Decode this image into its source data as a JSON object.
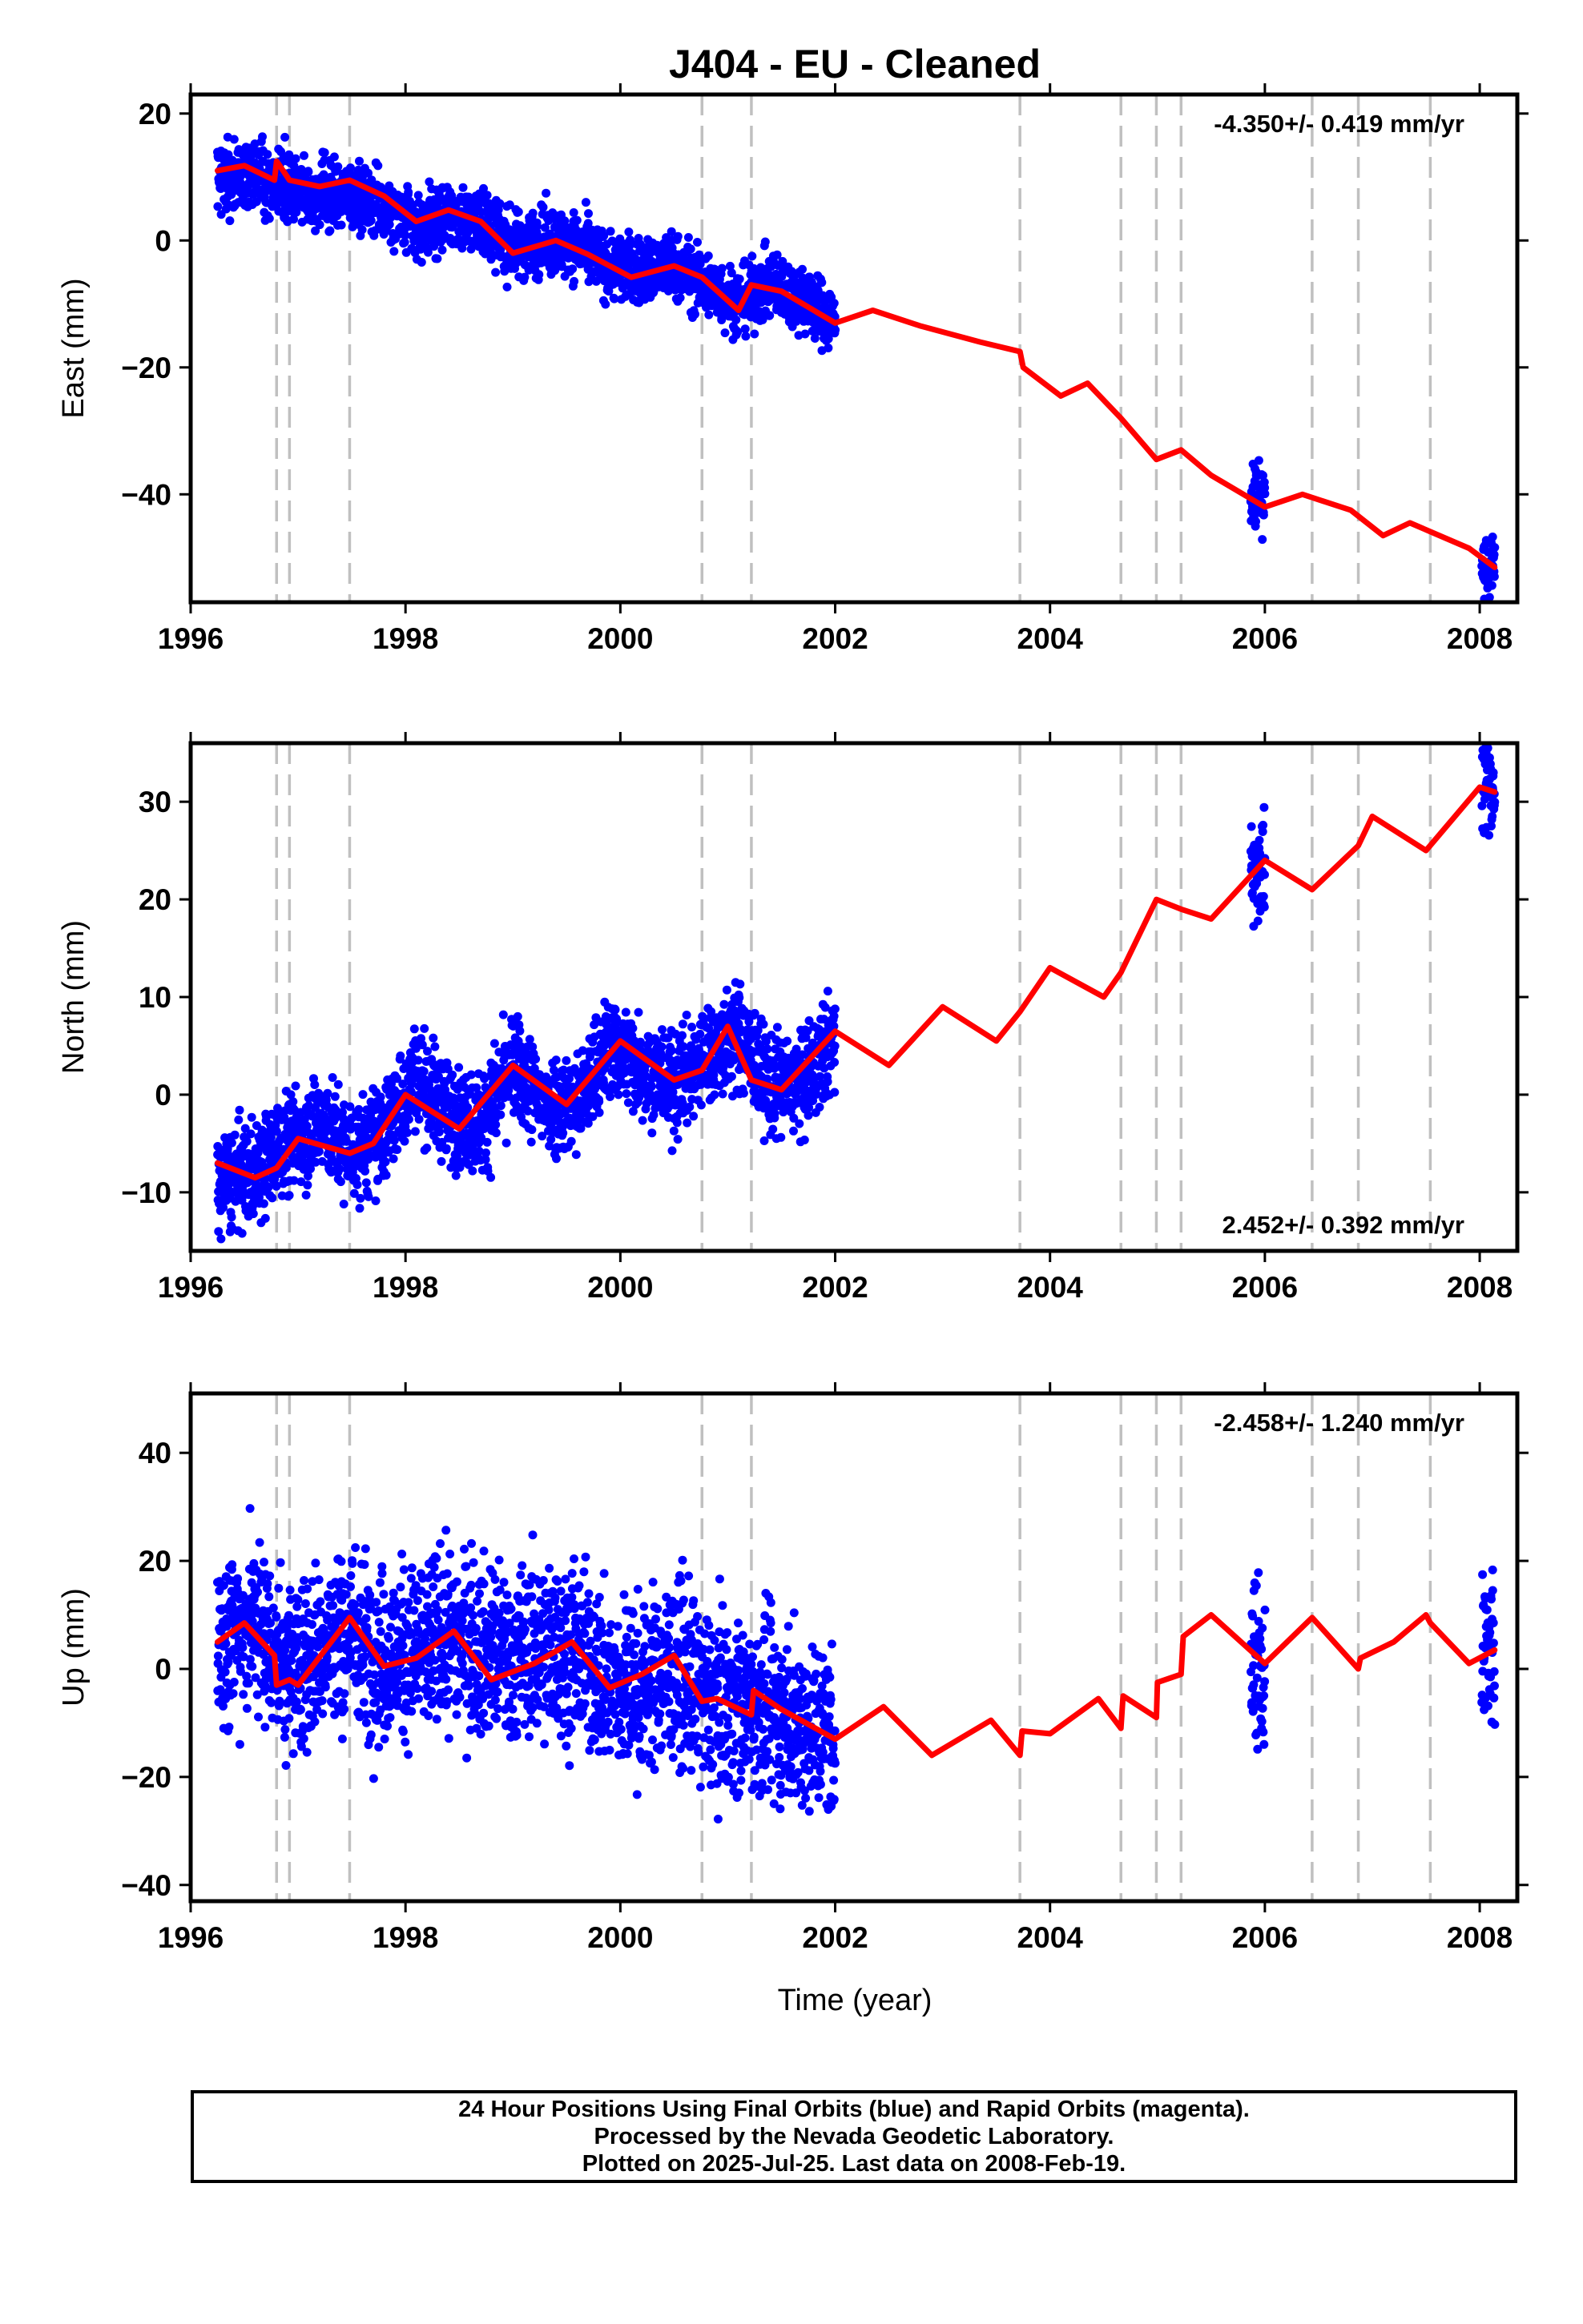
{
  "chart_data": {
    "type": "scatter",
    "title": "J404  - EU - Cleaned",
    "xlabel": "Time (year)",
    "xlim": [
      1996.0,
      2008.35
    ],
    "xticks": [
      1996,
      1998,
      2000,
      2002,
      2004,
      2006,
      2008
    ],
    "event_lines": [
      1996.8,
      1996.92,
      1997.48,
      2000.76,
      2001.22,
      2003.72,
      2004.66,
      2004.99,
      2005.22,
      2006.44,
      2006.87,
      2007.54
    ],
    "event_line_color": "#c0c0c0",
    "point_color": "#0000ff",
    "model_color": "#ff0000",
    "data_segments": [
      [
        1996.25,
        2002.0
      ],
      [
        2005.87,
        2006.0
      ],
      [
        2008.02,
        2008.14
      ]
    ],
    "panels": [
      {
        "ylabel": "East (mm)",
        "ylim": [
          -57,
          23
        ],
        "yticks": [
          20,
          0,
          -20,
          -40
        ],
        "rate": "-4.350+/- 0.419 mm/yr",
        "rate_position": "top-right",
        "series": [
          {
            "kind": "daily positions",
            "x": [
              1996.3,
              1996.6,
              1996.9,
              1997.2,
              1997.5,
              1997.8,
              1998.1,
              1998.4,
              1998.7,
              1999.0,
              1999.3,
              1999.6,
              1999.9,
              2000.2,
              2000.5,
              2000.8,
              2001.1,
              2001.4,
              2001.7,
              2002.0,
              2005.9,
              2008.1
            ],
            "y": [
              10,
              10,
              9,
              7,
              8,
              5,
              2,
              4,
              3,
              -1,
              0,
              -1,
              -4,
              -5,
              -4,
              -7,
              -10,
              -7,
              -9,
              -13,
              -40,
              -52
            ]
          },
          {
            "kind": "model",
            "x": [
              1996.25,
              1996.5,
              1996.78,
              1996.8,
              1996.92,
              1997.2,
              1997.48,
              1997.8,
              1998.1,
              1998.4,
              1998.7,
              1999.0,
              1999.4,
              1999.7,
              2000.1,
              2000.5,
              2000.76,
              2001.1,
              2001.22,
              2001.5,
              2002.0,
              2002.35,
              2002.8,
              2003.35,
              2003.72,
              2003.75,
              2004.1,
              2004.35,
              2004.66,
              2004.99,
              2005.22,
              2005.5,
              2006.0,
              2006.35,
              2006.8,
              2007.1,
              2007.35,
              2007.9,
              2008.14
            ],
            "y": [
              11,
              11.8,
              9.5,
              12.5,
              9.5,
              8.5,
              9.5,
              7.0,
              3.0,
              4.8,
              3.0,
              -2.0,
              0.0,
              -2.2,
              -5.8,
              -4.0,
              -5.8,
              -11.0,
              -7.0,
              -8.0,
              -13.0,
              -11.0,
              -13.5,
              -16.0,
              -17.5,
              -20.0,
              -24.5,
              -22.5,
              -28.0,
              -34.5,
              -33.0,
              -37.0,
              -42.0,
              -40.0,
              -42.5,
              -46.5,
              -44.5,
              -48.5,
              -51.5
            ]
          }
        ]
      },
      {
        "ylabel": "North (mm)",
        "ylim": [
          -16,
          36
        ],
        "yticks": [
          30,
          20,
          10,
          0,
          -10
        ],
        "rate": "2.452+/- 0.392 mm/yr",
        "rate_position": "bottom-right",
        "series": [
          {
            "kind": "daily positions",
            "x": [
              1996.3,
              1996.6,
              1996.9,
              1997.2,
              1997.5,
              1997.8,
              1998.1,
              1998.4,
              1998.7,
              1999.0,
              1999.3,
              1999.6,
              1999.9,
              2000.2,
              2000.5,
              2000.8,
              2001.1,
              2001.4,
              2001.7,
              2002.0,
              2005.9,
              2008.1
            ],
            "y": [
              -9,
              -8,
              -5,
              -3,
              -6,
              -4,
              2,
              -2,
              -3,
              3,
              -1,
              -1,
              5,
              3,
              1,
              4,
              6,
              1,
              1,
              6,
              23,
              31
            ]
          },
          {
            "kind": "model",
            "x": [
              1996.25,
              1996.6,
              1996.8,
              1997.0,
              1997.48,
              1997.7,
              1998.0,
              1998.5,
              1999.0,
              1999.5,
              2000.0,
              2000.5,
              2000.76,
              2001.0,
              2001.22,
              2001.5,
              2002.0,
              2002.5,
              2003.0,
              2003.5,
              2003.72,
              2004.0,
              2004.5,
              2004.66,
              2004.99,
              2005.22,
              2005.5,
              2006.0,
              2006.44,
              2006.87,
              2007.0,
              2007.5,
              2008.0,
              2008.14
            ],
            "y": [
              -7,
              -8.5,
              -7.5,
              -4.5,
              -6.0,
              -5.0,
              0.0,
              -3.5,
              3.0,
              -1.0,
              5.5,
              1.5,
              2.5,
              7.0,
              1.5,
              0.5,
              6.5,
              3.0,
              9.0,
              5.5,
              8.5,
              13.0,
              10.0,
              12.5,
              20.0,
              19.0,
              18.0,
              24.0,
              21.0,
              25.5,
              28.5,
              25.0,
              31.5,
              31.0
            ]
          }
        ]
      },
      {
        "ylabel": "Up (mm)",
        "ylim": [
          -43,
          51
        ],
        "yticks": [
          40,
          20,
          0,
          -20,
          -40
        ],
        "rate": "-2.458+/- 1.240 mm/yr",
        "rate_position": "top-right",
        "series": [
          {
            "kind": "daily positions",
            "x": [
              1996.3,
              1996.6,
              1996.9,
              1997.2,
              1997.5,
              1997.8,
              1998.1,
              1998.4,
              1998.7,
              1999.0,
              1999.3,
              1999.6,
              1999.9,
              2000.2,
              2000.5,
              2000.8,
              2001.1,
              2001.4,
              2001.7,
              2002.0,
              2005.9,
              2008.1
            ],
            "y": [
              6,
              9,
              0,
              3,
              7,
              2,
              3,
              6,
              4,
              2,
              4,
              3,
              -3,
              -4,
              0,
              -6,
              -6,
              -8,
              -10,
              -12,
              1,
              3
            ]
          },
          {
            "kind": "model",
            "x": [
              1996.25,
              1996.5,
              1996.78,
              1996.8,
              1996.92,
              1997.0,
              1997.48,
              1997.8,
              1998.1,
              1998.45,
              1998.8,
              1999.2,
              1999.55,
              1999.9,
              2000.2,
              2000.5,
              2000.76,
              2000.9,
              2001.22,
              2001.24,
              2001.5,
              2002.0,
              2002.45,
              2002.9,
              2003.45,
              2003.72,
              2003.74,
              2004.0,
              2004.45,
              2004.66,
              2004.68,
              2004.99,
              2005.0,
              2005.22,
              2005.24,
              2005.5,
              2006.0,
              2006.44,
              2006.87,
              2006.89,
              2007.2,
              2007.5,
              2007.54,
              2007.9,
              2008.14
            ],
            "y": [
              5,
              8.5,
              2.5,
              -3.0,
              -2.0,
              -3.0,
              9.5,
              0.5,
              2.0,
              7.0,
              -2.0,
              1.0,
              5.0,
              -3.5,
              -1.0,
              2.5,
              -6.0,
              -5.5,
              -8.5,
              -4.0,
              -7.5,
              -13.0,
              -7.0,
              -16.0,
              -9.5,
              -16.0,
              -11.5,
              -12.0,
              -5.5,
              -11.0,
              -5.0,
              -9.0,
              -2.5,
              -1.0,
              6.0,
              10.0,
              1.0,
              9.5,
              0.0,
              2.0,
              5.0,
              10.0,
              8.5,
              1.0,
              3.5
            ]
          }
        ]
      }
    ]
  },
  "footer": {
    "line1": "24 Hour Positions Using Final Orbits (blue) and Rapid Orbits (magenta).",
    "line2": "Processed by the Nevada Geodetic Laboratory.",
    "line3": "Plotted on 2025-Jul-25. Last data on 2008-Feb-19."
  }
}
